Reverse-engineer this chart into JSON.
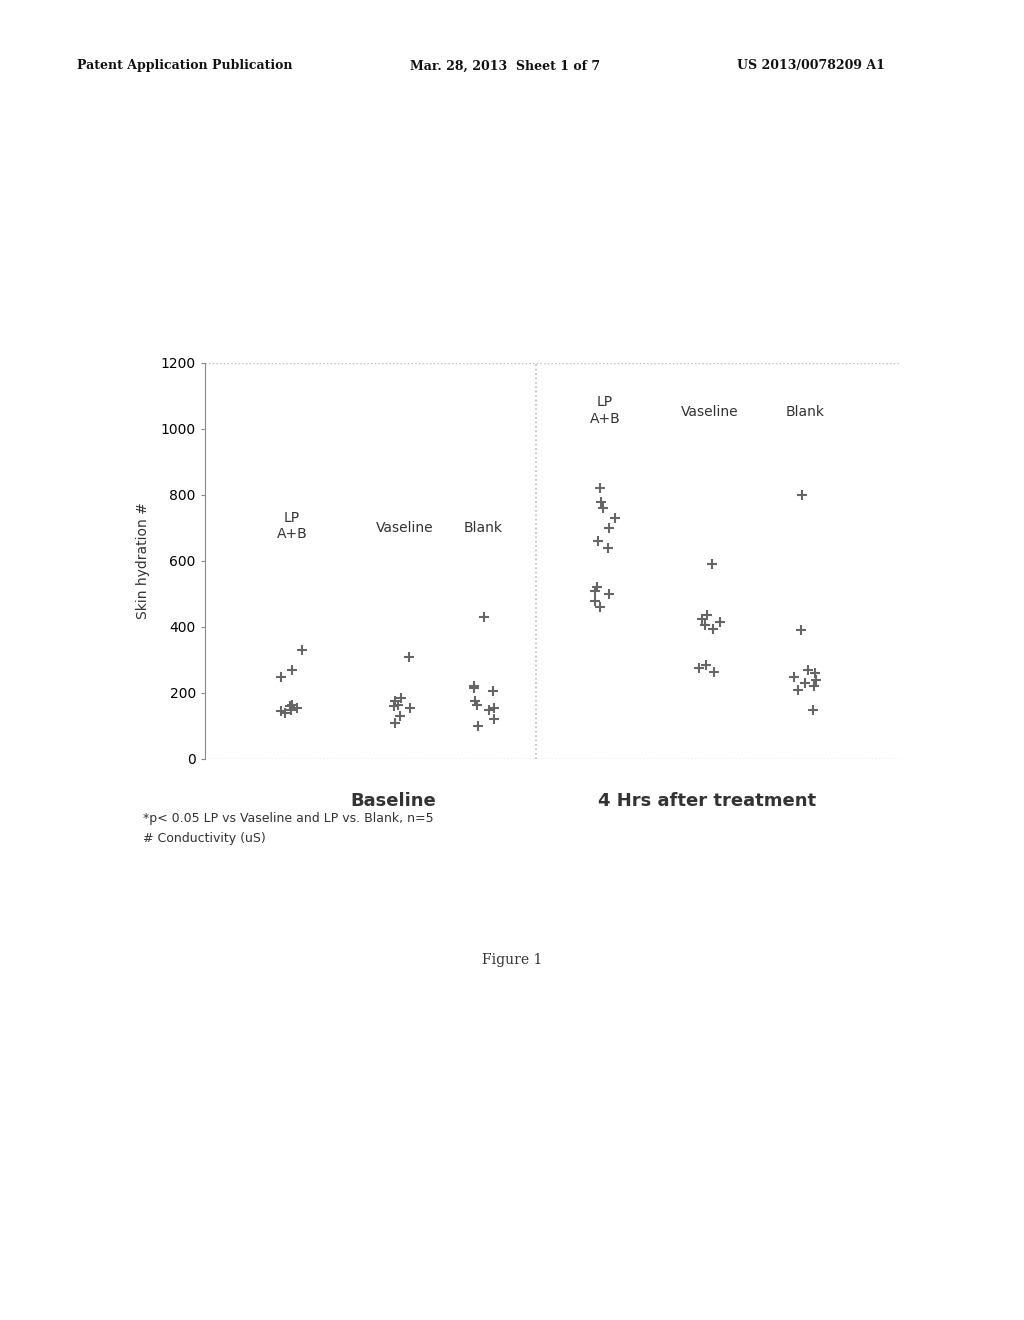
{
  "header_left": "Patent Application Publication",
  "header_mid": "Mar. 28, 2013  Sheet 1 of 7",
  "header_right": "US 2013/0078209 A1",
  "ylabel": "Skin hydration #",
  "ylim": [
    0,
    1200
  ],
  "yticks": [
    0,
    200,
    400,
    600,
    800,
    1000,
    1200
  ],
  "baseline_label": "Baseline",
  "treatment_label": "4 Hrs after treatment",
  "group_labels_lp": "LP\nA+B",
  "group_label_vaseline": "Vaseline",
  "group_label_blank": "Blank",
  "footnote1": "*p< 0.05 LP vs Vaseline and LP vs. Blank, n=5",
  "footnote2": "# Conductivity (uS)",
  "figure_label": "Figure 1",
  "baseline_LP": [
    140,
    145,
    150,
    155,
    160,
    165,
    250,
    270,
    330
  ],
  "baseline_Vaseline": [
    110,
    130,
    155,
    160,
    165,
    175,
    185,
    310
  ],
  "baseline_Blank": [
    100,
    120,
    150,
    155,
    165,
    175,
    205,
    215,
    220,
    430
  ],
  "treatment_LP": [
    460,
    480,
    500,
    510,
    520,
    640,
    660,
    700,
    730,
    760,
    780,
    820
  ],
  "treatment_Vaseline": [
    265,
    275,
    285,
    395,
    405,
    415,
    425,
    435,
    590
  ],
  "treatment_Blank": [
    150,
    210,
    220,
    230,
    240,
    250,
    260,
    270,
    390,
    800
  ],
  "bg_color": "#ffffff",
  "text_color": "#333333",
  "marker_color": "#666666",
  "divider_color": "#bbbbbb",
  "header_fontsize": 9,
  "axis_fontsize": 10,
  "label_fontsize": 10,
  "section_fontsize": 13,
  "footnote_fontsize": 9,
  "figure_label_fontsize": 10
}
